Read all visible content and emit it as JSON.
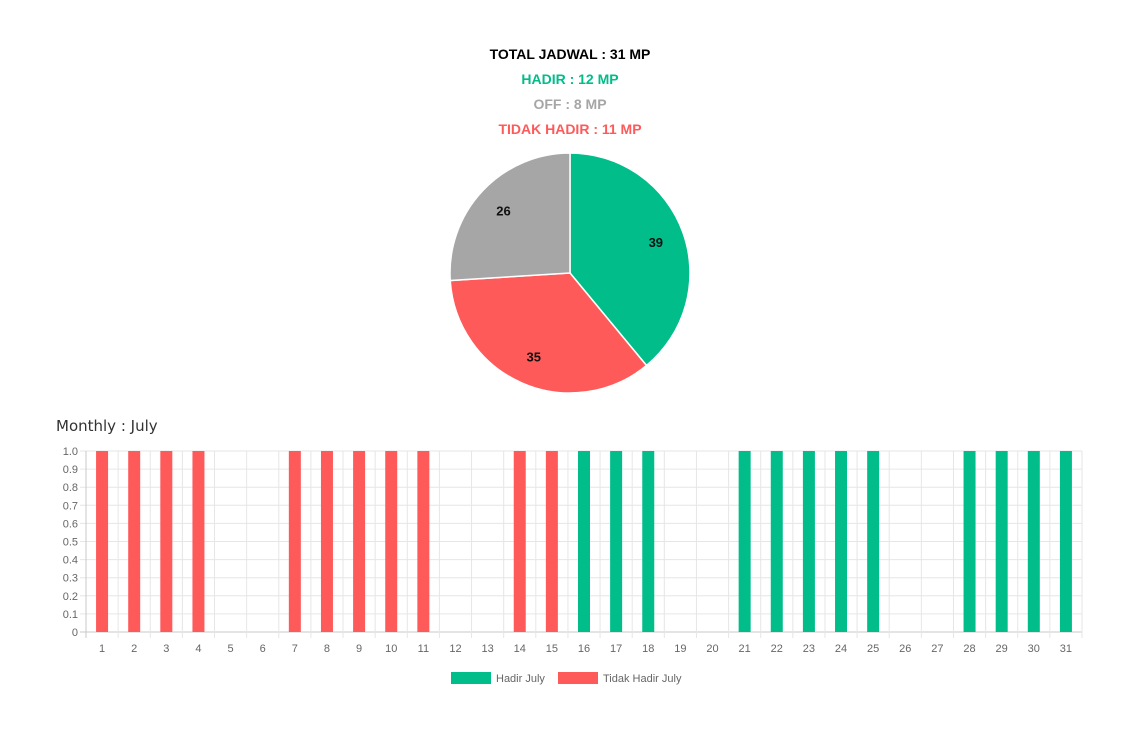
{
  "summary": {
    "total_label": "TOTAL JADWAL : 31 MP",
    "hadir_label": "HADIR : 12 MP",
    "off_label": "OFF : 8 MP",
    "tidak_hadir_label": "TIDAK HADIR : 11 MP"
  },
  "colors": {
    "hadir": "#00bd8a",
    "off": "#a6a6a6",
    "tidak_hadir": "#ff5a5a",
    "total": "#000000"
  },
  "monthly_title": "Monthly : July",
  "chart_data": [
    {
      "type": "pie",
      "slices": [
        {
          "key": "hadir",
          "value": 39,
          "label": "39",
          "color": "#00bd8a"
        },
        {
          "key": "tidak_hadir",
          "value": 35,
          "label": "35",
          "color": "#ff5a5a"
        },
        {
          "key": "off",
          "value": 26,
          "label": "26",
          "color": "#a6a6a6"
        }
      ]
    },
    {
      "type": "bar",
      "title": "Monthly : July",
      "categories": [
        "1",
        "2",
        "3",
        "4",
        "5",
        "6",
        "7",
        "8",
        "9",
        "10",
        "11",
        "12",
        "13",
        "14",
        "15",
        "16",
        "17",
        "18",
        "19",
        "20",
        "21",
        "22",
        "23",
        "24",
        "25",
        "26",
        "27",
        "28",
        "29",
        "30",
        "31"
      ],
      "series": [
        {
          "name": "Hadir July",
          "color": "#00bd8a",
          "values": [
            0,
            0,
            0,
            0,
            0,
            0,
            0,
            0,
            0,
            0,
            0,
            0,
            0,
            0,
            0,
            1,
            1,
            1,
            0,
            0,
            1,
            1,
            1,
            1,
            1,
            0,
            0,
            1,
            1,
            1,
            1
          ]
        },
        {
          "name": "Tidak Hadir July",
          "color": "#ff5a5a",
          "values": [
            1,
            1,
            1,
            1,
            0,
            0,
            1,
            1,
            1,
            1,
            1,
            0,
            0,
            1,
            1,
            0,
            0,
            0,
            0,
            0,
            0,
            0,
            0,
            0,
            0,
            0,
            0,
            0,
            0,
            0,
            0
          ]
        }
      ],
      "ylim": [
        0,
        1.0
      ],
      "yticks": [
        "0",
        "0.1",
        "0.2",
        "0.3",
        "0.4",
        "0.5",
        "0.6",
        "0.7",
        "0.8",
        "0.9",
        "1.0"
      ],
      "grid": true,
      "legend": "bottom"
    }
  ]
}
